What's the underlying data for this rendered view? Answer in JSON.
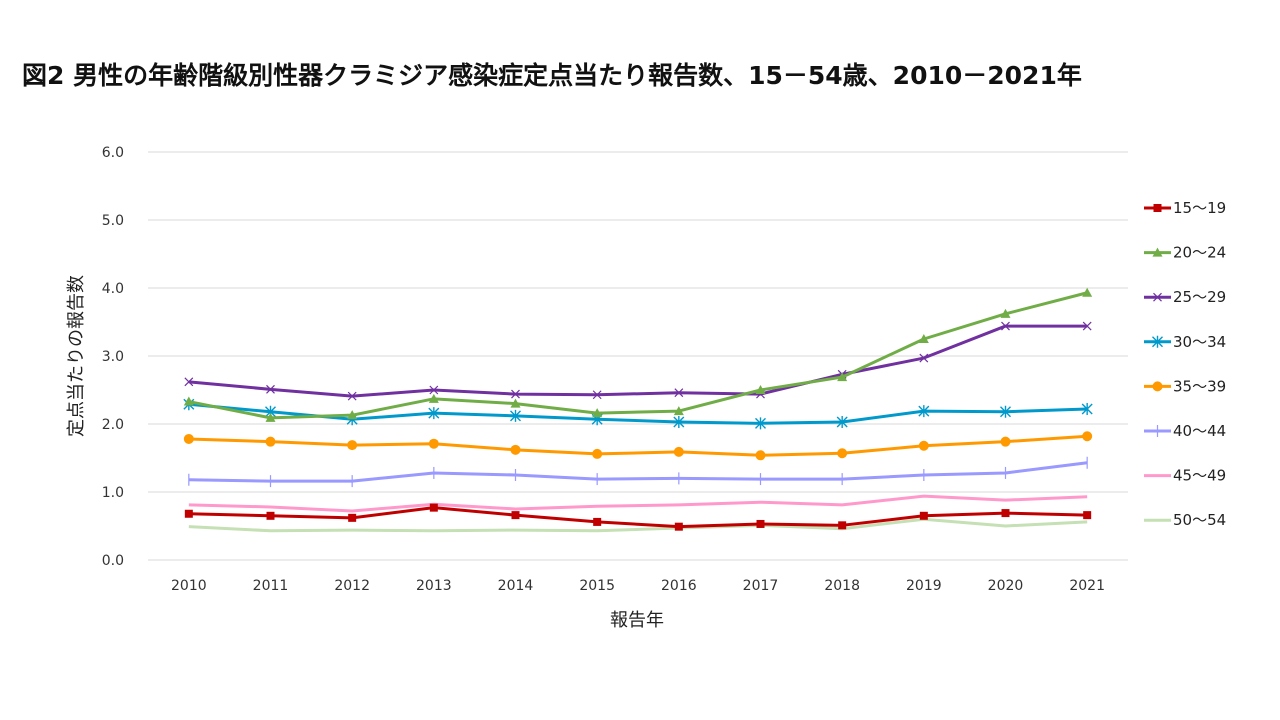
{
  "chart_data": {
    "type": "line",
    "title": "図2 男性の年齢階級別性器クラミジア感染症定点当たり報告数、15－54歳、2010－2021年",
    "xlabel": "報告年",
    "ylabel": "定点当たりの報告数",
    "x": [
      "2010",
      "2011",
      "2012",
      "2013",
      "2014",
      "2015",
      "2016",
      "2017",
      "2018",
      "2019",
      "2020",
      "2021"
    ],
    "ylim": [
      0,
      6
    ],
    "yticks": [
      "0.0",
      "1.0",
      "2.0",
      "3.0",
      "4.0",
      "5.0",
      "6.0"
    ],
    "grid": true,
    "legend_position": "right",
    "series": [
      {
        "name": "15～19",
        "color": "#C00000",
        "marker": "square",
        "values": [
          0.68,
          0.65,
          0.62,
          0.77,
          0.66,
          0.56,
          0.49,
          0.53,
          0.51,
          0.65,
          0.69,
          0.66
        ]
      },
      {
        "name": "20～24",
        "color": "#70AD47",
        "marker": "triangle",
        "values": [
          2.33,
          2.09,
          2.13,
          2.37,
          2.3,
          2.16,
          2.19,
          2.5,
          2.69,
          3.25,
          3.62,
          3.93
        ]
      },
      {
        "name": "25～29",
        "color": "#7030A0",
        "marker": "x",
        "values": [
          2.62,
          2.51,
          2.41,
          2.5,
          2.44,
          2.43,
          2.46,
          2.44,
          2.73,
          2.97,
          3.44,
          3.44
        ]
      },
      {
        "name": "30～34",
        "color": "#0099CC",
        "marker": "star",
        "values": [
          2.29,
          2.18,
          2.07,
          2.16,
          2.12,
          2.07,
          2.03,
          2.01,
          2.03,
          2.19,
          2.18,
          2.22
        ]
      },
      {
        "name": "35～39",
        "color": "#FF9900",
        "marker": "circle",
        "values": [
          1.78,
          1.74,
          1.69,
          1.71,
          1.62,
          1.56,
          1.59,
          1.54,
          1.57,
          1.68,
          1.74,
          1.82
        ]
      },
      {
        "name": "40～44",
        "color": "#9999FF",
        "marker": "plus",
        "values": [
          1.18,
          1.16,
          1.16,
          1.28,
          1.25,
          1.19,
          1.2,
          1.19,
          1.19,
          1.25,
          1.28,
          1.43
        ]
      },
      {
        "name": "45～49",
        "color": "#FF99CC",
        "marker": "none",
        "values": [
          0.81,
          0.78,
          0.72,
          0.82,
          0.75,
          0.79,
          0.81,
          0.85,
          0.81,
          0.94,
          0.88,
          0.93
        ]
      },
      {
        "name": "50～54",
        "color": "#C5E0B4",
        "marker": "none",
        "values": [
          0.49,
          0.43,
          0.44,
          0.43,
          0.44,
          0.43,
          0.47,
          0.51,
          0.46,
          0.6,
          0.5,
          0.56
        ]
      }
    ]
  }
}
